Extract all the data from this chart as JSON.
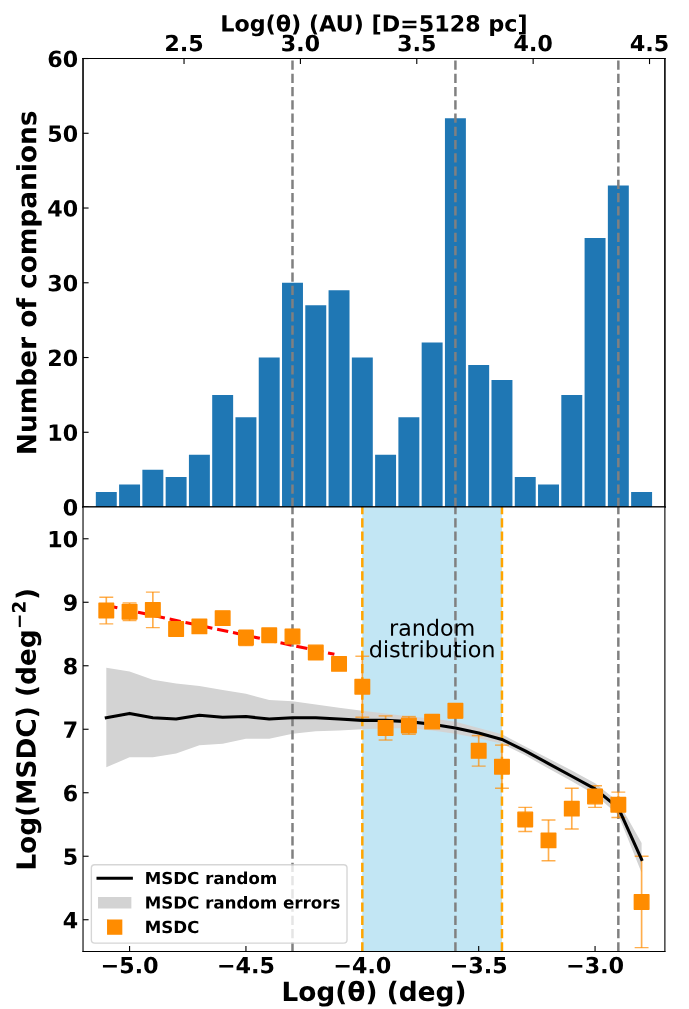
{
  "chart_data": [
    {
      "type": "histogram",
      "ylabel": "Number of companions",
      "x2label": "Log(θ) (AU) [D=5128 pc]",
      "bins": [
        -5.15,
        -5.05,
        -4.95,
        -4.85,
        -4.75,
        -4.65,
        -4.55,
        -4.45,
        -4.35,
        -4.25,
        -4.15,
        -4.05,
        -3.95,
        -3.85,
        -3.75,
        -3.65,
        -3.55,
        -3.45,
        -3.35,
        -3.25,
        -3.15,
        -3.05,
        -2.95,
        -2.85,
        -2.75
      ],
      "values": [
        2,
        3,
        5,
        4,
        7,
        15,
        12,
        20,
        30,
        27,
        29,
        20,
        7,
        12,
        22,
        52,
        19,
        17,
        4,
        3,
        15,
        36,
        43,
        2
      ],
      "color": "#1f77b4",
      "xlim": [
        -5.2,
        -2.7
      ],
      "ylim": [
        0,
        60
      ],
      "yticks": [
        0,
        10,
        20,
        30,
        40,
        50,
        60
      ],
      "x2lim": [
        2.066,
        4.566
      ],
      "x2ticks": [
        2.5,
        {
          "value": 3.0,
          "label": "3.0"
        },
        3.5,
        {
          "value": 4.0,
          "label": "4.0"
        },
        4.5
      ],
      "tick_labels": "y",
      "grid": false,
      "legend": false,
      "ref_lines": [
        {
          "axis": "x",
          "value": -4.3,
          "color": "#808080",
          "line_style": "dashed"
        },
        {
          "axis": "x",
          "value": -3.6,
          "color": "#808080",
          "line_style": "dashed"
        },
        {
          "axis": "x",
          "value": -2.9,
          "color": "#808080",
          "line_style": "dashed"
        }
      ]
    },
    {
      "type": "scatter",
      "xlabel": "Log(θ) (deg)",
      "ylabel": "Log(MSDC) (deg$^{−2}$)",
      "x": [
        -5.1,
        -5.0,
        -4.9,
        -4.8,
        -4.7,
        -4.6,
        -4.5,
        -4.4,
        -4.3,
        -4.2,
        -4.1,
        -4.0,
        -3.9,
        -3.8,
        -3.7,
        -3.6,
        -3.5,
        -3.4,
        -3.3,
        -3.2,
        -3.1,
        -3.0,
        -2.9,
        -2.8
      ],
      "series": [
        {
          "name": "MSDC random",
          "type": "line",
          "color": "#000000",
          "marker": "none",
          "line_style": "solid",
          "values": [
            7.18,
            7.25,
            7.18,
            7.16,
            7.22,
            7.19,
            7.2,
            7.16,
            7.18,
            7.18,
            7.16,
            7.14,
            7.14,
            7.12,
            7.08,
            7.02,
            6.94,
            6.84,
            6.66,
            6.46,
            6.26,
            6.06,
            5.76,
            4.95
          ]
        },
        {
          "name": "MSDC random errors",
          "type": "area",
          "color": "#d3d3d3",
          "values": [
            null,
            null,
            null,
            null,
            null,
            null,
            null,
            null,
            null,
            null,
            null,
            null,
            null,
            null,
            null,
            null,
            null,
            null,
            null,
            null,
            null,
            null,
            null,
            null
          ],
          "lower": [
            6.4,
            6.56,
            6.56,
            6.62,
            6.75,
            6.77,
            6.85,
            6.85,
            6.93,
            6.97,
            6.98,
            7.0,
            7.01,
            7.02,
            6.98,
            6.93,
            6.86,
            6.77,
            6.59,
            6.38,
            6.18,
            5.97,
            5.65,
            4.74
          ],
          "upper": [
            7.97,
            7.91,
            7.78,
            7.72,
            7.68,
            7.62,
            7.56,
            7.46,
            7.44,
            7.39,
            7.34,
            7.29,
            7.25,
            7.2,
            7.17,
            7.12,
            7.02,
            6.92,
            6.73,
            6.54,
            6.35,
            6.15,
            5.86,
            5.21
          ]
        },
        {
          "name": "MSDC",
          "type": "scatter",
          "color": "#ff8c00",
          "marker": "square",
          "values": [
            8.87,
            8.85,
            8.88,
            8.58,
            8.62,
            8.75,
            8.44,
            8.48,
            8.46,
            8.21,
            8.03,
            7.67,
            7.02,
            7.06,
            7.12,
            7.29,
            6.66,
            6.41,
            5.58,
            5.25,
            5.75,
            5.94,
            5.81,
            4.28
          ],
          "errors": [
            0.21,
            0.14,
            0.28,
            null,
            null,
            null,
            0.12,
            null,
            0.11,
            null,
            null,
            0.48,
            0.19,
            0.14,
            null,
            0.11,
            0.24,
            0.34,
            0.19,
            0.32,
            0.32,
            0.17,
            0.2,
            0.72
          ]
        },
        {
          "type": "line",
          "color": "#ff0000",
          "line_style": "dashed",
          "marker": "none",
          "x": [
            -5.1,
            -4.12
          ],
          "values": [
            8.95,
            8.18
          ]
        }
      ],
      "xlim": [
        -5.2,
        -2.7
      ],
      "ylim": [
        3.5,
        10.5
      ],
      "xticks": [
        {
          "value": -5.0,
          "label": "−5.0"
        },
        {
          "value": -4.5,
          "label": "−4.5"
        },
        {
          "value": -4.0,
          "label": "−4.0"
        },
        {
          "value": -3.5,
          "label": "−3.5"
        },
        {
          "value": -3.0,
          "label": "−3.0"
        }
      ],
      "yticks": [
        4,
        5,
        6,
        7,
        8,
        9,
        10
      ],
      "grid": false,
      "legend": "bottom left",
      "ref_lines": [
        {
          "axis": "x",
          "value": -4.3,
          "color": "#808080",
          "line_style": "dashed"
        },
        {
          "axis": "x",
          "value": -3.6,
          "color": "#808080",
          "line_style": "dashed"
        },
        {
          "axis": "x",
          "value": -2.9,
          "color": "#808080",
          "line_style": "dashed"
        },
        {
          "axis": "x",
          "value": -4.0,
          "color": "#ffa500",
          "line_style": "dashed"
        },
        {
          "axis": "x",
          "value": -3.4,
          "color": "#ffa500",
          "line_style": "dashed"
        }
      ],
      "bands": [
        {
          "axis": "x",
          "from": -4.0,
          "to": -3.4,
          "color": "#c2e6f4"
        }
      ],
      "annotations": [
        "random\ndistribution"
      ]
    }
  ]
}
